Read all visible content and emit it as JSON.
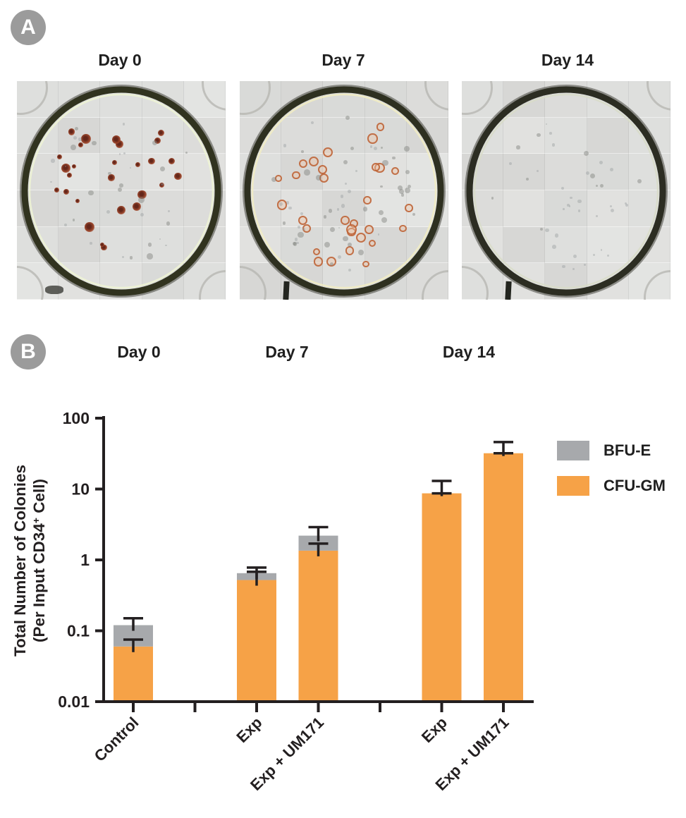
{
  "panel_a": {
    "badge": "A",
    "day_labels": [
      "Day 0",
      "Day 7",
      "Day 14"
    ],
    "dishes": [
      {
        "name": "well-image-day-0",
        "seed": 11,
        "rim": "#31331f",
        "highlight": "#eef4d4",
        "colonies": [
          {
            "type": "red",
            "count": 27
          },
          {
            "type": "gray-clump",
            "count": 16
          },
          {
            "type": "faint-gray",
            "count": 18
          }
        ]
      },
      {
        "name": "well-image-day-7",
        "seed": 29,
        "rim": "#2e3020",
        "highlight": "#f2edc2",
        "colonies": [
          {
            "type": "red-ring",
            "count": 30
          },
          {
            "type": "gray-clump",
            "count": 34
          },
          {
            "type": "faint-gray",
            "count": 22
          }
        ]
      },
      {
        "name": "well-image-day-14",
        "seed": 47,
        "rim": "#2c2d22",
        "highlight": "#d8dcc8",
        "colonies": [
          {
            "type": "faint-gray",
            "count": 30
          },
          {
            "type": "gray-clump",
            "count": 10
          }
        ]
      }
    ]
  },
  "panel_b": {
    "badge": "B",
    "day_labels": [
      "Day 0",
      "Day 7",
      "Day 14"
    ],
    "legend": [
      {
        "label": "BFU-E",
        "color": "#a7a9ac"
      },
      {
        "label": "CFU-GM",
        "color": "#f6a247"
      }
    ]
  },
  "chart_data": {
    "type": "bar",
    "stacked": true,
    "yscale": "log",
    "ylim": [
      0.01,
      100
    ],
    "yticks": [
      100,
      10,
      1,
      0.1,
      0.01
    ],
    "ytick_labels": [
      "100",
      "10",
      "1",
      "0.1",
      "0.01"
    ],
    "ylabel_line1": "Total Number of Colonies",
    "ylabel_line2_pre": "(Per Input CD34",
    "ylabel_sup": "+",
    "ylabel_line2_post": " Cell)",
    "grid": false,
    "legend_position": "right",
    "groups": [
      "Day 0",
      "Day 7",
      "Day 14"
    ],
    "series": [
      {
        "name": "BFU-E",
        "color": "#a7a9ac"
      },
      {
        "name": "CFU-GM",
        "color": "#f6a247"
      }
    ],
    "n_slots": 7,
    "bars": [
      {
        "group": "Day 0",
        "label": "Control",
        "slot": 0,
        "cfu_gm": 0.06,
        "bfu_e": 0.06,
        "total": 0.12,
        "err_total_hi": 0.15,
        "err_cfu_hi": 0.075
      },
      {
        "group": "Day 7",
        "label": "Exp",
        "slot": 2,
        "cfu_gm": 0.52,
        "bfu_e": 0.13,
        "total": 0.65,
        "err_total_hi": 0.78,
        "err_cfu_hi": 0.68
      },
      {
        "group": "Day 7",
        "label": "Exp + UM171",
        "slot": 3,
        "cfu_gm": 1.35,
        "bfu_e": 0.85,
        "total": 2.2,
        "err_total_hi": 2.9,
        "err_cfu_hi": 1.7
      },
      {
        "group": "Day 14",
        "label": "Exp",
        "slot": 5,
        "cfu_gm": 8.7,
        "bfu_e": 0,
        "total": 8.7,
        "err_total_hi": 13,
        "err_cfu_hi": null
      },
      {
        "group": "Day 14",
        "label": "Exp + UM171",
        "slot": 6,
        "cfu_gm": 32,
        "bfu_e": 0,
        "total": 32,
        "err_total_hi": 46,
        "err_cfu_hi": null
      }
    ],
    "axis_color": "#231f20"
  }
}
